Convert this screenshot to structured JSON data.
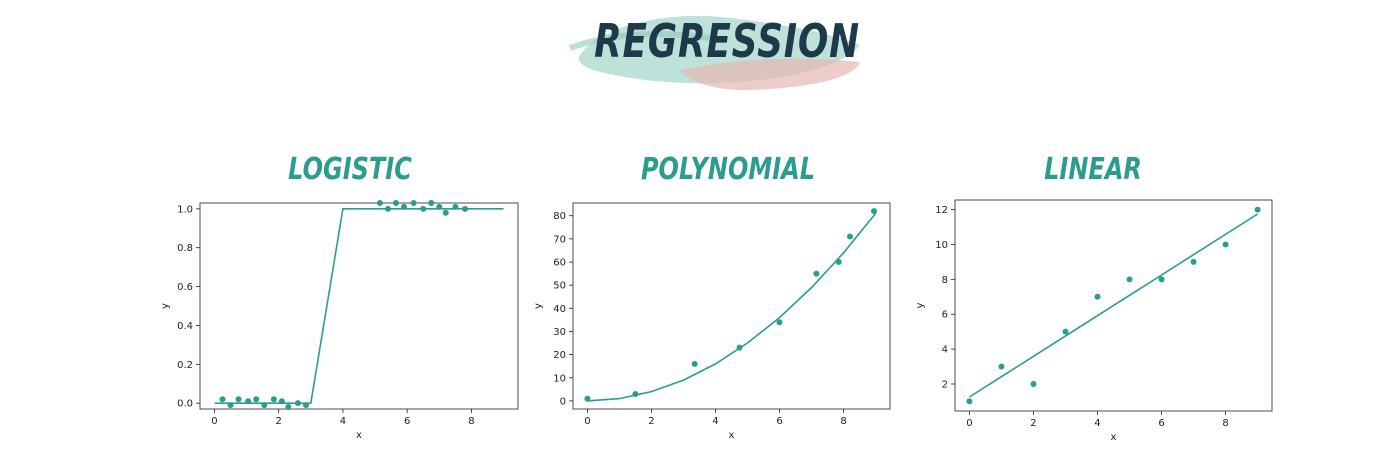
{
  "header": {
    "title": "REGRESSION"
  },
  "colors": {
    "teal": "#2a9d8f",
    "title_dark": "#1e3a4a",
    "brush_teal": "#a8d8cc",
    "brush_pink": "#e6b8b0"
  },
  "chart_data": [
    {
      "type": "scatter",
      "title": "LOGISTIC",
      "xlabel": "x",
      "ylabel": "y",
      "xlim": [
        -0.45,
        9.45
      ],
      "ylim": [
        -0.03,
        1.03
      ],
      "xticks": [
        0,
        2,
        4,
        6,
        8
      ],
      "yticks": [
        0.0,
        0.2,
        0.4,
        0.6,
        0.8,
        1.0
      ],
      "ytick_labels": [
        "0.0",
        "0.2",
        "0.4",
        "0.6",
        "0.8",
        "1.0"
      ],
      "grid": false,
      "points": [
        {
          "x": 0.25,
          "y": 0.02
        },
        {
          "x": 0.5,
          "y": -0.01
        },
        {
          "x": 0.75,
          "y": 0.02
        },
        {
          "x": 1.05,
          "y": 0.01
        },
        {
          "x": 1.3,
          "y": 0.02
        },
        {
          "x": 1.55,
          "y": -0.01
        },
        {
          "x": 1.85,
          "y": 0.02
        },
        {
          "x": 2.1,
          "y": 0.01
        },
        {
          "x": 2.3,
          "y": -0.02
        },
        {
          "x": 2.6,
          "y": 0.0
        },
        {
          "x": 2.85,
          "y": -0.01
        },
        {
          "x": 5.15,
          "y": 1.03
        },
        {
          "x": 5.4,
          "y": 1.0
        },
        {
          "x": 5.65,
          "y": 1.03
        },
        {
          "x": 5.9,
          "y": 1.01
        },
        {
          "x": 6.2,
          "y": 1.03
        },
        {
          "x": 6.5,
          "y": 1.0
        },
        {
          "x": 6.75,
          "y": 1.03
        },
        {
          "x": 7.0,
          "y": 1.01
        },
        {
          "x": 7.2,
          "y": 0.98
        },
        {
          "x": 7.5,
          "y": 1.01
        },
        {
          "x": 7.8,
          "y": 1.0
        }
      ],
      "fit_line": [
        {
          "x": 0,
          "y": 0.0
        },
        {
          "x": 3,
          "y": 0.0
        },
        {
          "x": 4,
          "y": 1.0
        },
        {
          "x": 9,
          "y": 1.0
        }
      ]
    },
    {
      "type": "scatter",
      "title": "POLYNOMIAL",
      "xlabel": "x",
      "ylabel": "y",
      "xlim": [
        -0.45,
        9.45
      ],
      "ylim": [
        -3.5,
        85.5
      ],
      "xticks": [
        0,
        2,
        4,
        6,
        8
      ],
      "yticks": [
        0,
        10,
        20,
        30,
        40,
        50,
        60,
        70,
        80
      ],
      "ytick_labels": [
        "0",
        "10",
        "20",
        "30",
        "40",
        "50",
        "60",
        "70",
        "80"
      ],
      "grid": false,
      "points": [
        {
          "x": 0.0,
          "y": 1
        },
        {
          "x": 1.5,
          "y": 3
        },
        {
          "x": 3.35,
          "y": 16
        },
        {
          "x": 4.75,
          "y": 23
        },
        {
          "x": 6.0,
          "y": 34
        },
        {
          "x": 7.15,
          "y": 55
        },
        {
          "x": 7.85,
          "y": 60
        },
        {
          "x": 8.2,
          "y": 71
        },
        {
          "x": 8.95,
          "y": 82
        }
      ],
      "fit_line": [
        {
          "x": 0,
          "y": 0
        },
        {
          "x": 1,
          "y": 1
        },
        {
          "x": 2,
          "y": 4
        },
        {
          "x": 3,
          "y": 9
        },
        {
          "x": 4,
          "y": 16
        },
        {
          "x": 5,
          "y": 25
        },
        {
          "x": 6,
          "y": 36
        },
        {
          "x": 7,
          "y": 49
        },
        {
          "x": 8,
          "y": 64
        },
        {
          "x": 9,
          "y": 81
        }
      ]
    },
    {
      "type": "scatter",
      "title": "LINEAR",
      "xlabel": "x",
      "ylabel": "y",
      "xlim": [
        -0.45,
        9.45
      ],
      "ylim": [
        0.45,
        12.55
      ],
      "xticks": [
        0,
        2,
        4,
        6,
        8
      ],
      "yticks": [
        2,
        4,
        6,
        8,
        10,
        12
      ],
      "ytick_labels": [
        "2",
        "4",
        "6",
        "8",
        "10",
        "12"
      ],
      "grid": false,
      "points": [
        {
          "x": 0,
          "y": 1
        },
        {
          "x": 1,
          "y": 3
        },
        {
          "x": 2,
          "y": 2
        },
        {
          "x": 3,
          "y": 5
        },
        {
          "x": 4,
          "y": 7
        },
        {
          "x": 5,
          "y": 8
        },
        {
          "x": 6,
          "y": 8
        },
        {
          "x": 7,
          "y": 9
        },
        {
          "x": 8,
          "y": 10
        },
        {
          "x": 9,
          "y": 12
        }
      ],
      "fit_line": [
        {
          "x": 0,
          "y": 1.25
        },
        {
          "x": 9,
          "y": 11.75
        }
      ]
    }
  ]
}
